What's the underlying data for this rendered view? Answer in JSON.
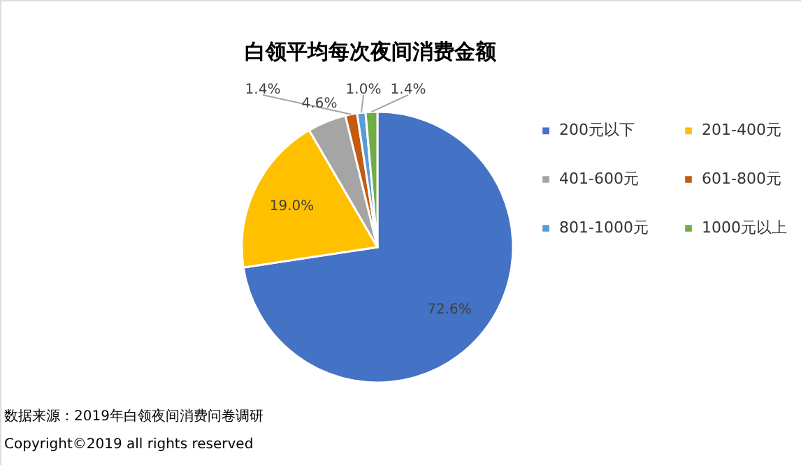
{
  "chart_data": {
    "type": "pie",
    "title": "白领平均每次夜间消费金额",
    "categories": [
      "200元以下",
      "201-400元",
      "401-600元",
      "601-800元",
      "801-1000元",
      "1000元以上"
    ],
    "values": [
      72.6,
      19.0,
      4.6,
      1.4,
      1.0,
      1.4
    ],
    "value_labels": [
      "72.6%",
      "19.0%",
      "4.6%",
      "1.4%",
      "1.0%",
      "1.4%"
    ],
    "colors": [
      "#4472c4",
      "#ffc000",
      "#a5a5a5",
      "#c55a11",
      "#5b9bd5",
      "#70ad47"
    ],
    "legend": "right",
    "annotations": [
      "数据来源：2019年白领夜间消费问卷调研",
      "Copyright©2019 all rights reserved"
    ]
  }
}
